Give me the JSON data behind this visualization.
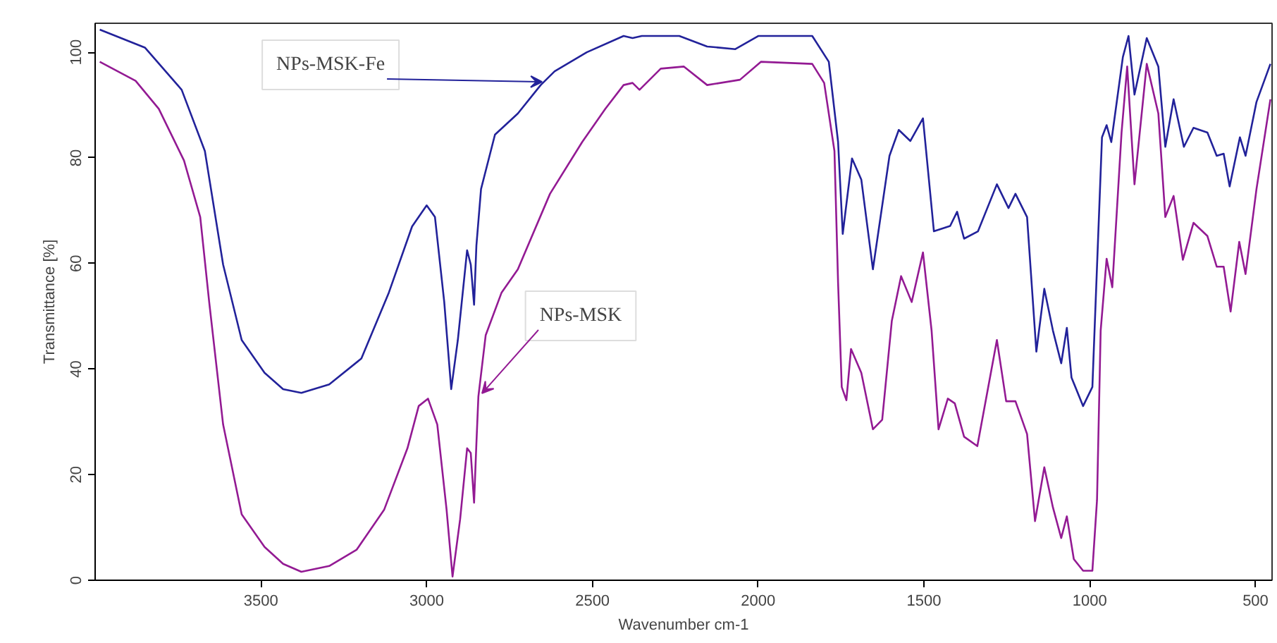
{
  "chart_data": {
    "type": "line",
    "xlabel": "Wavenumber cm-1",
    "ylabel": "Transmittance [%]",
    "xlim": [
      4000,
      450
    ],
    "ylim": [
      0,
      105.5
    ],
    "xticks": [
      3500,
      3000,
      2500,
      2000,
      1500,
      1000,
      500
    ],
    "yticks": [
      0,
      20,
      40,
      60,
      80,
      100
    ],
    "grid": false,
    "series": [
      {
        "color": "#22229a",
        "x": [
          3986,
          3850,
          3739,
          3669,
          3614,
          3558,
          3489,
          3433,
          3378,
          3294,
          3197,
          3114,
          3044,
          3000,
          2975,
          2947,
          2926,
          2906,
          2878,
          2867,
          2857,
          2850,
          2836,
          2794,
          2725,
          2656,
          2614,
          2517,
          2406,
          2379,
          2351,
          2238,
          2154,
          2069,
          1999,
          1837,
          1787,
          1759,
          1745,
          1717,
          1689,
          1654,
          1604,
          1576,
          1541,
          1503,
          1470,
          1421,
          1400,
          1379,
          1337,
          1280,
          1245,
          1224,
          1189,
          1161,
          1137,
          1111,
          1086,
          1069,
          1055,
          1020,
          992,
          963,
          949,
          935,
          900,
          883,
          865,
          828,
          793,
          772,
          747,
          716,
          687,
          645,
          617,
          596,
          578,
          547,
          530,
          497,
          455
        ],
        "values": [
          104.3,
          100.9,
          92.9,
          81.3,
          59.8,
          45.5,
          39.3,
          36.2,
          35.5,
          37.1,
          42.0,
          54.5,
          67.0,
          71.0,
          68.8,
          52.7,
          36.2,
          45.5,
          62.5,
          59.8,
          52.2,
          63.4,
          74.1,
          84.4,
          88.4,
          93.8,
          96.4,
          100,
          103.1,
          102.7,
          103.1,
          103.1,
          101.1,
          100.6,
          103.1,
          103.1,
          98.2,
          83.0,
          65.6,
          79.9,
          75.9,
          58.9,
          80.4,
          85.3,
          83.2,
          87.5,
          66.1,
          67.1,
          69.8,
          64.7,
          66.1,
          75.0,
          70.5,
          73.2,
          68.8,
          43.3,
          55.2,
          47.3,
          41.1,
          47.8,
          38.4,
          33.0,
          36.6,
          83.9,
          86.2,
          83.0,
          99.1,
          103.1,
          92.0,
          102.7,
          97.3,
          82.1,
          91.1,
          82.1,
          85.7,
          84.8,
          80.4,
          80.8,
          74.6,
          83.9,
          80.4,
          90.6,
          97.8
        ]
      },
      {
        "color": "#931a93",
        "x": [
          3986,
          3878,
          3808,
          3732,
          3683,
          3656,
          3614,
          3558,
          3489,
          3433,
          3378,
          3294,
          3211,
          3128,
          3058,
          3024,
          2996,
          2968,
          2940,
          2922,
          2899,
          2878,
          2867,
          2857,
          2850,
          2844,
          2822,
          2774,
          2725,
          2628,
          2531,
          2461,
          2406,
          2379,
          2358,
          2294,
          2224,
          2154,
          2055,
          1992,
          1837,
          1801,
          1770,
          1759,
          1748,
          1734,
          1720,
          1689,
          1654,
          1626,
          1597,
          1569,
          1537,
          1503,
          1477,
          1456,
          1428,
          1407,
          1379,
          1339,
          1280,
          1252,
          1224,
          1189,
          1165,
          1137,
          1111,
          1086,
          1069,
          1048,
          1020,
          992,
          978,
          967,
          949,
          932,
          904,
          887,
          865,
          828,
          793,
          772,
          747,
          719,
          687,
          645,
          617,
          596,
          575,
          549,
          530,
          497,
          455
        ],
        "values": [
          98.2,
          94.6,
          89.3,
          79.5,
          68.8,
          52.7,
          29.5,
          12.5,
          6.3,
          3.1,
          1.6,
          2.7,
          5.8,
          13.4,
          25.0,
          33.0,
          34.4,
          29.5,
          13.4,
          0.7,
          11.6,
          25.0,
          24.1,
          14.7,
          25.9,
          34.8,
          46.4,
          54.5,
          58.9,
          73.2,
          83.0,
          89.3,
          93.8,
          94.2,
          92.9,
          96.9,
          97.3,
          93.8,
          94.8,
          98.2,
          97.8,
          94.2,
          81.3,
          56.3,
          36.6,
          34.1,
          43.8,
          39.3,
          28.6,
          30.4,
          49.1,
          57.6,
          52.7,
          62.1,
          47.3,
          28.6,
          34.4,
          33.5,
          27.2,
          25.4,
          45.5,
          33.9,
          33.9,
          27.7,
          11.2,
          21.4,
          13.8,
          8.0,
          12.1,
          4.0,
          1.8,
          1.8,
          15.2,
          47.3,
          60.9,
          55.5,
          84.8,
          97.3,
          75.0,
          97.8,
          88.4,
          68.8,
          72.8,
          60.7,
          67.7,
          65.2,
          59.4,
          59.4,
          50.9,
          64.1,
          58.0,
          74.1,
          91.1
        ]
      }
    ],
    "annotations": [
      {
        "text": "NPs-MSK-Fe",
        "x": 2652,
        "y": 94.4
      },
      {
        "text": "NPs-MSK",
        "x": 2833,
        "y": 35.4
      }
    ]
  }
}
